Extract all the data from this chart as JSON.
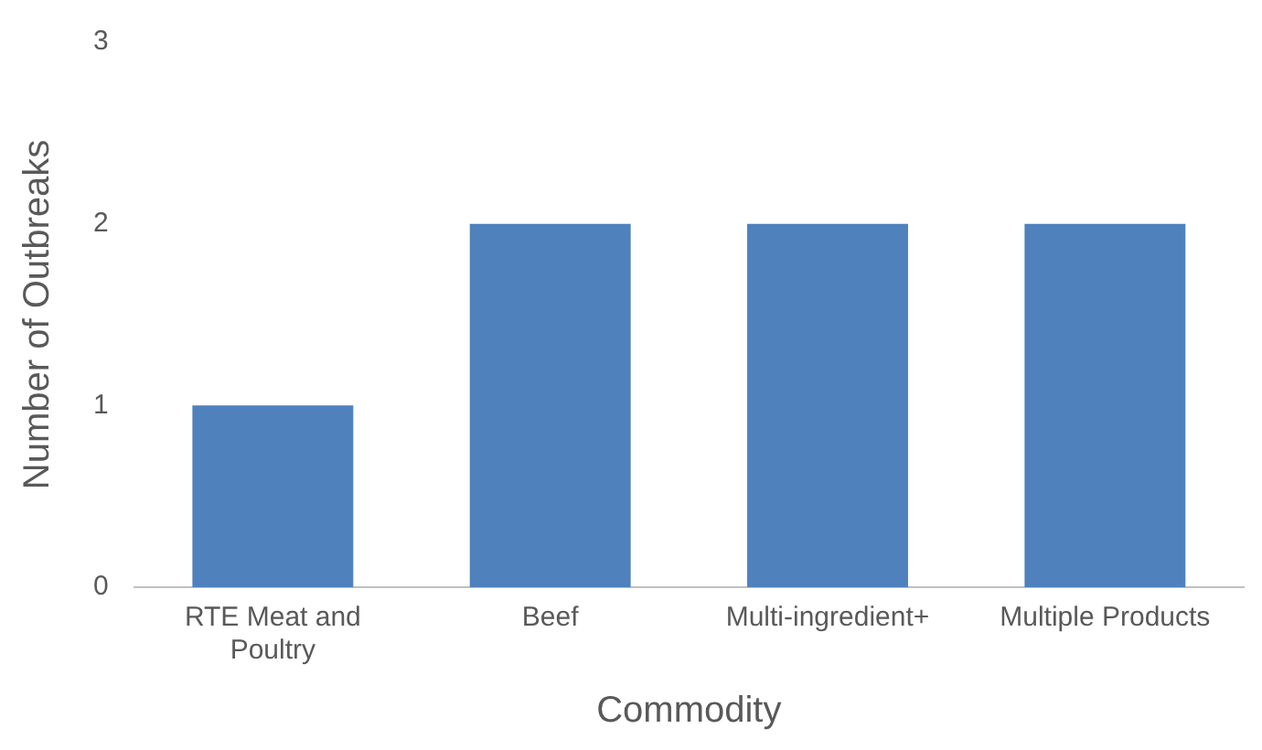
{
  "chart_data": {
    "type": "bar",
    "xlabel": "Commodity",
    "ylabel": "Number of Outbreaks",
    "categories": [
      "RTE Meat and Poultry",
      "Beef",
      "Multi-ingredient+",
      "Multiple Products"
    ],
    "values": [
      1,
      2,
      2,
      2
    ],
    "color": "#4f81bd",
    "ylim": [
      0,
      3
    ],
    "yticks": [
      0,
      1,
      2,
      3
    ],
    "grid": false,
    "legend": false
  }
}
